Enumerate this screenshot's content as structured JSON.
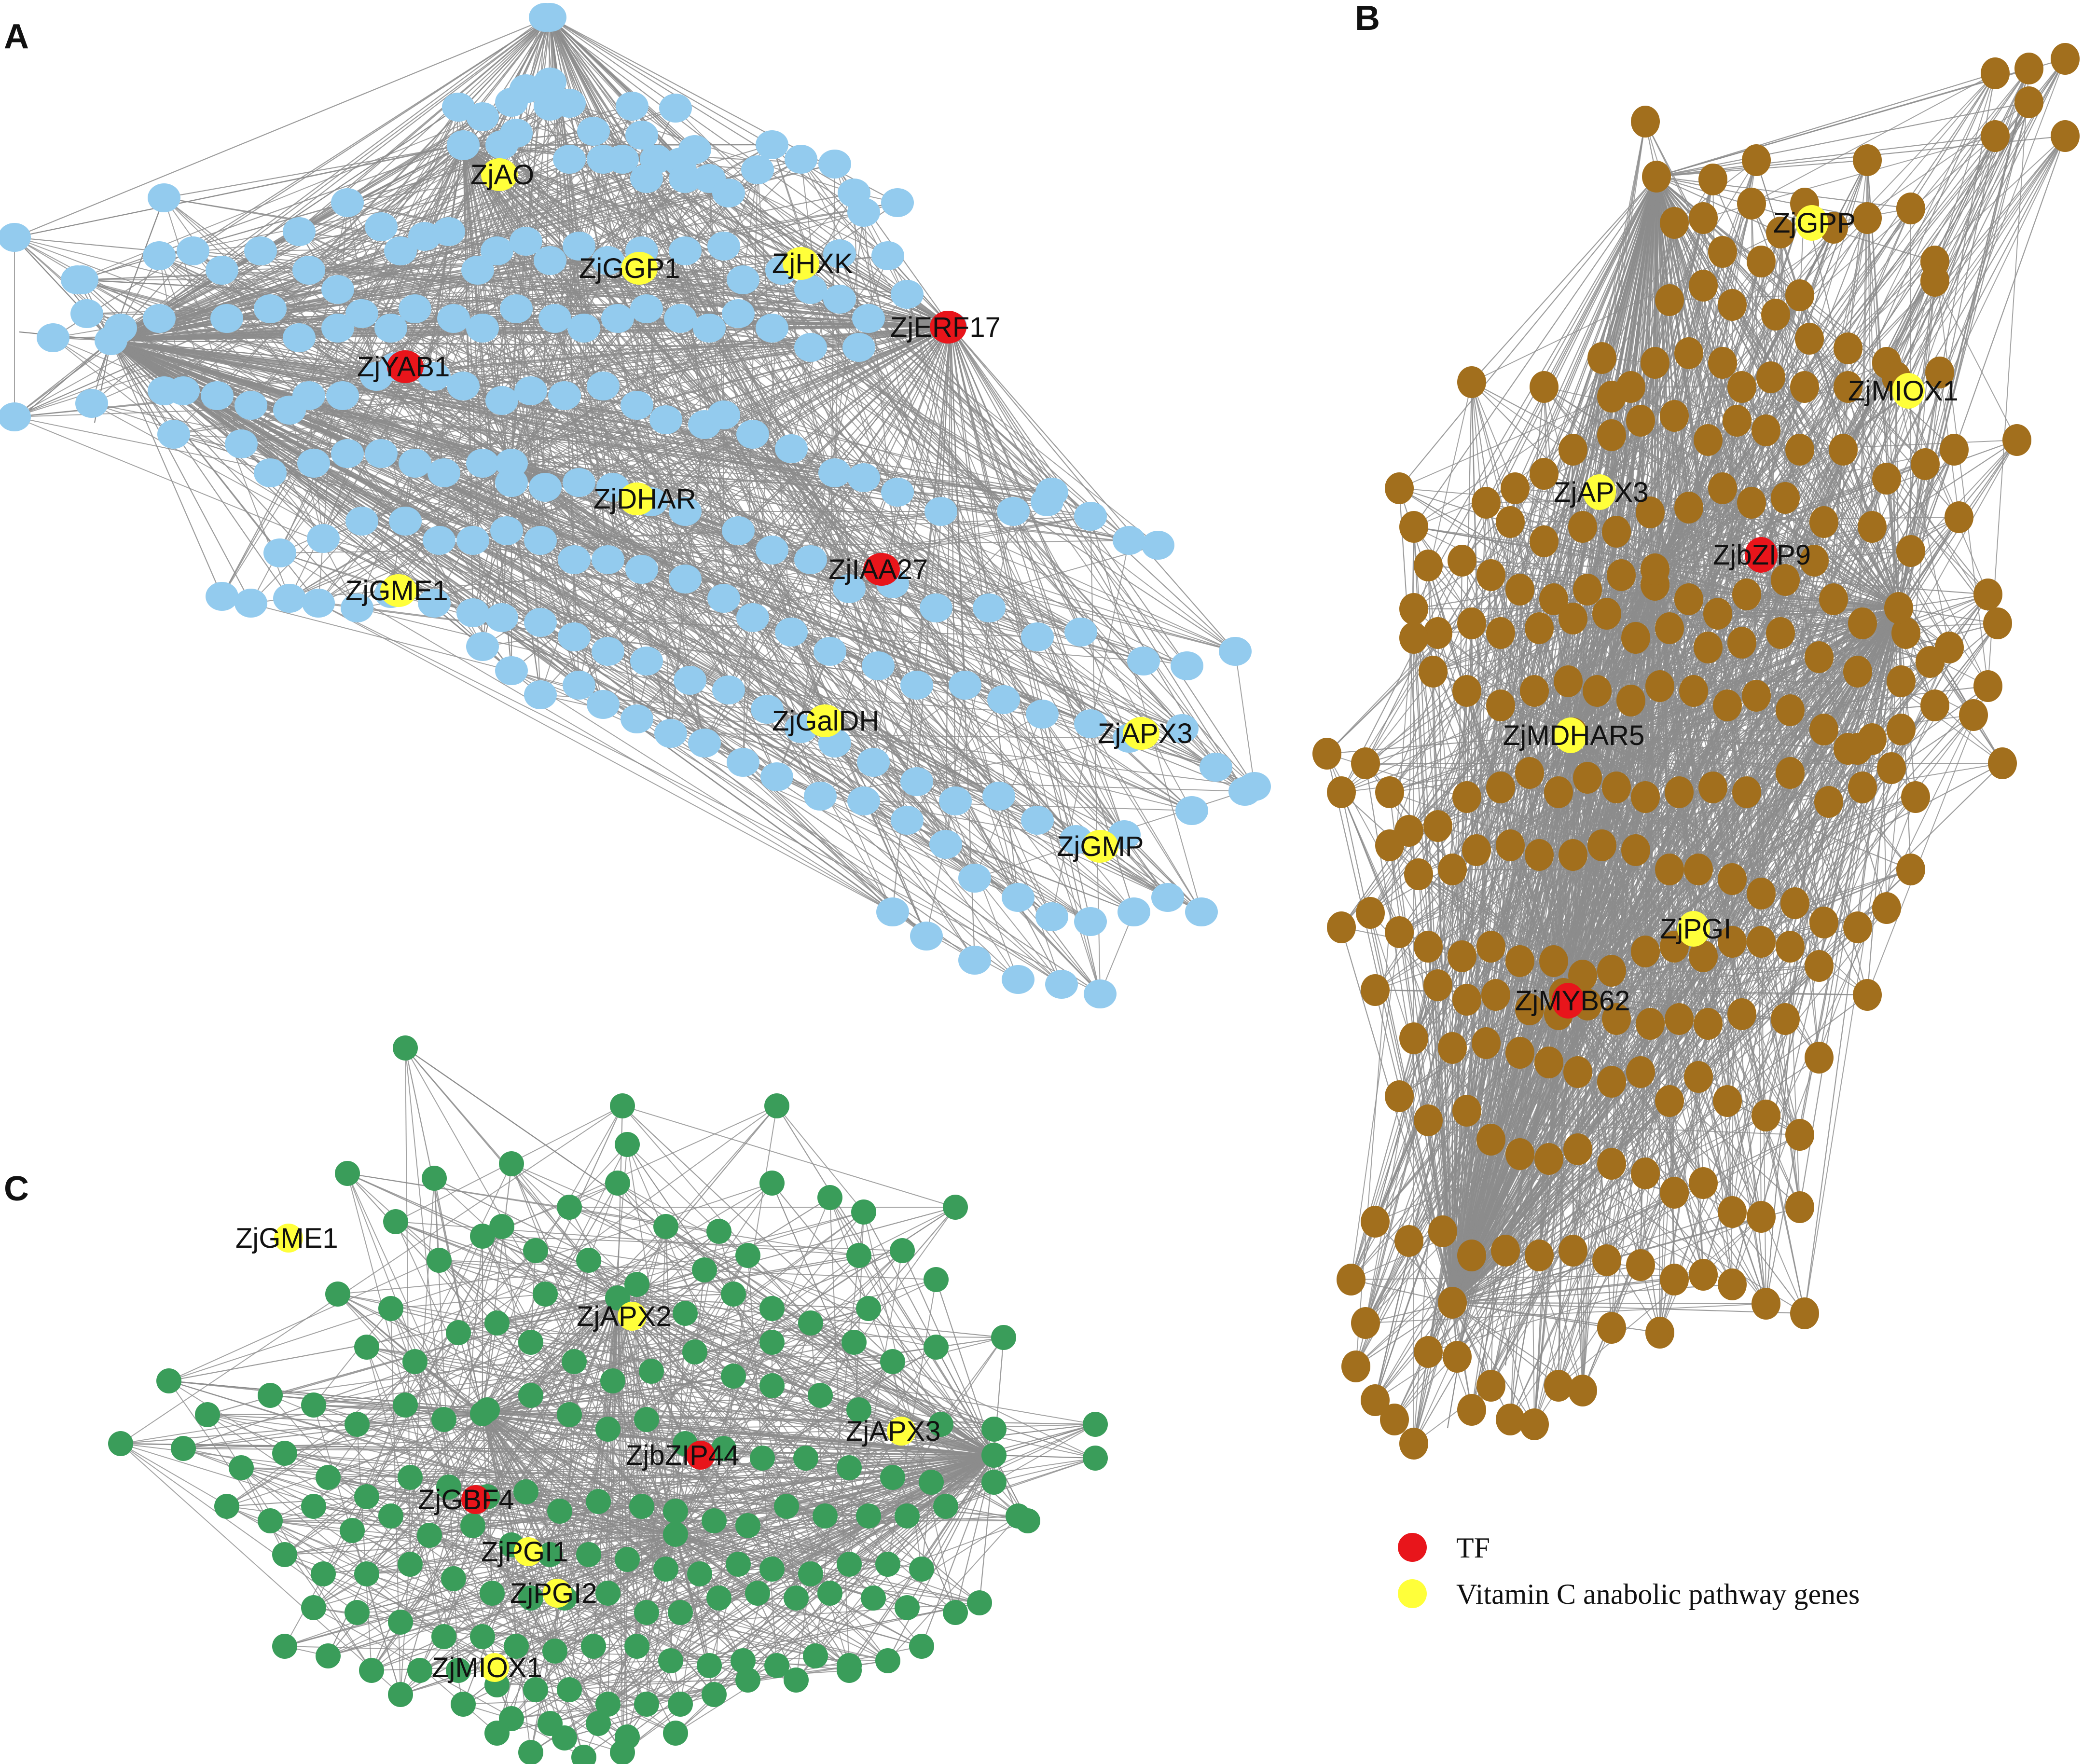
{
  "colors": {
    "edge": "#8c8c8c",
    "tf": "#e8151b",
    "vitamin_c": "#ffff3a",
    "panel_a_node": "#93cbee",
    "panel_b_node": "#a26f1d",
    "panel_c_node": "#3a9d5a",
    "text": "#111111"
  },
  "panels": [
    {
      "letter": "A",
      "node_color_key": "panel_a_node",
      "genes": [
        {
          "name": "ZjAO",
          "type": "vitamin_c"
        },
        {
          "name": "ZjGGP1",
          "type": "vitamin_c"
        },
        {
          "name": "ZjHXK",
          "type": "vitamin_c"
        },
        {
          "name": "ZjERF17",
          "type": "tf"
        },
        {
          "name": "ZjYAB1",
          "type": "tf"
        },
        {
          "name": "ZjDHAR",
          "type": "vitamin_c"
        },
        {
          "name": "ZjIAA27",
          "type": "tf"
        },
        {
          "name": "ZjGME1",
          "type": "vitamin_c"
        },
        {
          "name": "ZjGalDH",
          "type": "vitamin_c"
        },
        {
          "name": "ZjAPX3",
          "type": "vitamin_c"
        },
        {
          "name": "ZjGMP",
          "type": "vitamin_c"
        }
      ]
    },
    {
      "letter": "B",
      "node_color_key": "panel_b_node",
      "genes": [
        {
          "name": "ZjGPP",
          "type": "vitamin_c"
        },
        {
          "name": "ZjMIOX1",
          "type": "vitamin_c"
        },
        {
          "name": "ZjAPX3",
          "type": "vitamin_c"
        },
        {
          "name": "ZjbZIP9",
          "type": "tf"
        },
        {
          "name": "ZjMDHAR5",
          "type": "vitamin_c"
        },
        {
          "name": "ZjPGI",
          "type": "vitamin_c"
        },
        {
          "name": "ZjMYB62",
          "type": "tf"
        }
      ]
    },
    {
      "letter": "C",
      "node_color_key": "panel_c_node",
      "genes": [
        {
          "name": "ZjGME1",
          "type": "vitamin_c"
        },
        {
          "name": "ZjAPX2",
          "type": "vitamin_c"
        },
        {
          "name": "ZjAPX3",
          "type": "vitamin_c"
        },
        {
          "name": "ZjbZIP44",
          "type": "tf"
        },
        {
          "name": "ZjGBF4",
          "type": "tf"
        },
        {
          "name": "ZjPGI1",
          "type": "vitamin_c"
        },
        {
          "name": "ZjPGI2",
          "type": "vitamin_c"
        },
        {
          "name": "ZjMIOX1",
          "type": "vitamin_c"
        }
      ]
    }
  ],
  "legend": [
    {
      "label": "TF",
      "color_key": "tf"
    },
    {
      "label": "Vitamin C anabolic pathway genes",
      "color_key": "vitamin_c"
    }
  ]
}
